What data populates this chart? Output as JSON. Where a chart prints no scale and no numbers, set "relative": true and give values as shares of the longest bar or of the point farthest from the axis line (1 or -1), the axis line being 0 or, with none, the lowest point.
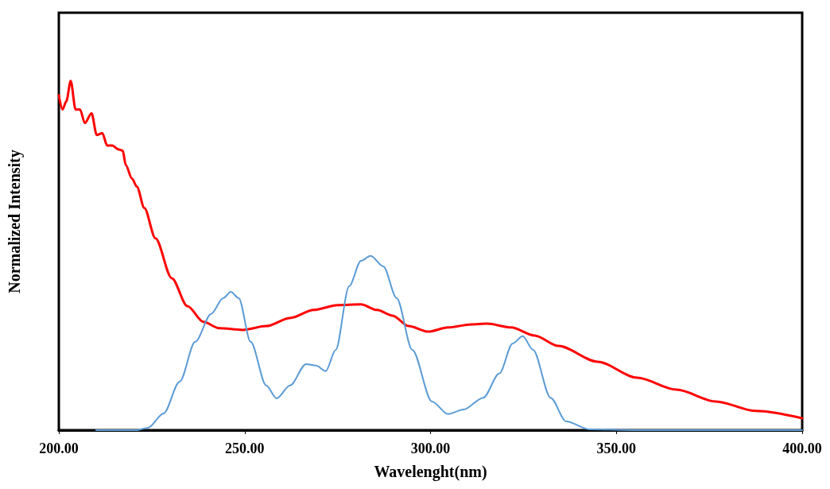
{
  "chart_data": {
    "type": "line",
    "xlabel": "Wavelenght(nm)",
    "ylabel": "Normalized Intensity",
    "relative": true,
    "xlim": [
      200,
      400
    ],
    "xticks": [
      {
        "value": 200,
        "label": "200.00"
      },
      {
        "value": 250,
        "label": "250.00"
      },
      {
        "value": 300,
        "label": "300.00"
      },
      {
        "value": 350,
        "label": "350.00"
      },
      {
        "value": 400,
        "label": "400.00"
      }
    ],
    "grid": false,
    "marker": "none",
    "line_style": "solid",
    "series": [
      {
        "color": "#ff0000",
        "x": [
          200,
          201,
          202,
          203.2,
          204.5,
          205.7,
          207,
          208.8,
          210.2,
          211.7,
          213,
          214.4,
          216,
          217.2,
          218,
          219.7,
          221,
          223,
          226,
          230.4,
          234.6,
          238.9,
          243.1,
          249.5,
          255.8,
          262.2,
          268.6,
          275,
          281.3,
          285.6,
          289.8,
          294.1,
          299.4,
          304.7,
          311,
          315.3,
          321.7,
          328,
          334.4,
          345,
          355.6,
          366.2,
          376.8,
          387.5,
          400
        ],
        "values": [
          0.959,
          0.918,
          0.941,
          1.0,
          0.918,
          0.918,
          0.879,
          0.907,
          0.845,
          0.85,
          0.815,
          0.815,
          0.804,
          0.8,
          0.759,
          0.72,
          0.697,
          0.636,
          0.549,
          0.435,
          0.355,
          0.31,
          0.292,
          0.287,
          0.298,
          0.321,
          0.344,
          0.358,
          0.36,
          0.344,
          0.328,
          0.298,
          0.282,
          0.294,
          0.303,
          0.305,
          0.294,
          0.271,
          0.241,
          0.196,
          0.15,
          0.116,
          0.082,
          0.055,
          0.034
        ]
      },
      {
        "color": "#5b9bd5",
        "x": [
          210,
          220.8,
          224,
          228.2,
          232.5,
          236.7,
          241,
          244.2,
          246.3,
          248.4,
          251.6,
          255.8,
          258.6,
          262.2,
          266.5,
          269.2,
          271.8,
          274.5,
          278.1,
          281.3,
          283.9,
          287.3,
          290.9,
          295.1,
          300.4,
          304.7,
          308.9,
          314.2,
          318.5,
          322.1,
          324.8,
          327.6,
          332.3,
          336.5,
          342.9,
          355.6,
          400
        ],
        "values": [
          0,
          0,
          0.007,
          0.048,
          0.139,
          0.253,
          0.333,
          0.378,
          0.396,
          0.378,
          0.253,
          0.128,
          0.091,
          0.128,
          0.189,
          0.185,
          0.169,
          0.23,
          0.412,
          0.485,
          0.499,
          0.469,
          0.378,
          0.23,
          0.082,
          0.046,
          0.059,
          0.093,
          0.162,
          0.248,
          0.269,
          0.23,
          0.093,
          0.025,
          0.002,
          0,
          0
        ]
      }
    ]
  }
}
